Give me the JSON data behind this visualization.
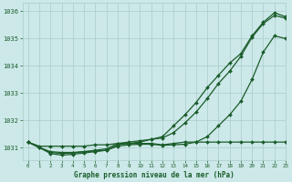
{
  "title": "Graphe pression niveau de la mer (hPa)",
  "background_color": "#cce8e8",
  "grid_color": "#aacccc",
  "line_color": "#1a5c2a",
  "xlim": [
    -0.5,
    23
  ],
  "ylim": [
    1030.55,
    1036.3
  ],
  "yticks": [
    1031,
    1032,
    1033,
    1034,
    1035,
    1036
  ],
  "xticks": [
    0,
    1,
    2,
    3,
    4,
    5,
    6,
    7,
    8,
    9,
    10,
    11,
    12,
    13,
    14,
    15,
    16,
    17,
    18,
    19,
    20,
    21,
    22,
    23
  ],
  "series_flat": [
    1031.2,
    1031.05,
    1031.05,
    1031.05,
    1031.05,
    1031.05,
    1031.1,
    1031.1,
    1031.15,
    1031.15,
    1031.15,
    1031.15,
    1031.1,
    1031.15,
    1031.2,
    1031.2,
    1031.2,
    1031.2,
    1031.2,
    1031.2,
    1031.2,
    1031.2,
    1031.2,
    1031.2
  ],
  "series_dip_shallow": [
    1031.2,
    1031.0,
    1030.85,
    1030.82,
    1030.82,
    1030.85,
    1030.87,
    1030.9,
    1031.05,
    1031.1,
    1031.12,
    1031.12,
    1031.08,
    1031.1,
    1031.12,
    1031.2,
    1031.4,
    1031.8,
    1032.2,
    1032.7,
    1033.5,
    1034.5,
    1035.1,
    1035.0
  ],
  "series_rise_early": [
    1031.2,
    1031.0,
    1030.82,
    1030.78,
    1030.8,
    1030.85,
    1030.9,
    1030.95,
    1031.15,
    1031.2,
    1031.25,
    1031.3,
    1031.35,
    1031.55,
    1031.9,
    1032.3,
    1032.8,
    1033.35,
    1033.8,
    1034.35,
    1035.05,
    1035.55,
    1035.85,
    1035.75
  ],
  "series_rise_steep": [
    1031.2,
    1031.0,
    1030.78,
    1030.72,
    1030.75,
    1030.8,
    1030.85,
    1030.9,
    1031.1,
    1031.15,
    1031.2,
    1031.3,
    1031.4,
    1031.8,
    1032.2,
    1032.65,
    1033.2,
    1033.65,
    1034.1,
    1034.45,
    1035.1,
    1035.6,
    1035.95,
    1035.8
  ]
}
